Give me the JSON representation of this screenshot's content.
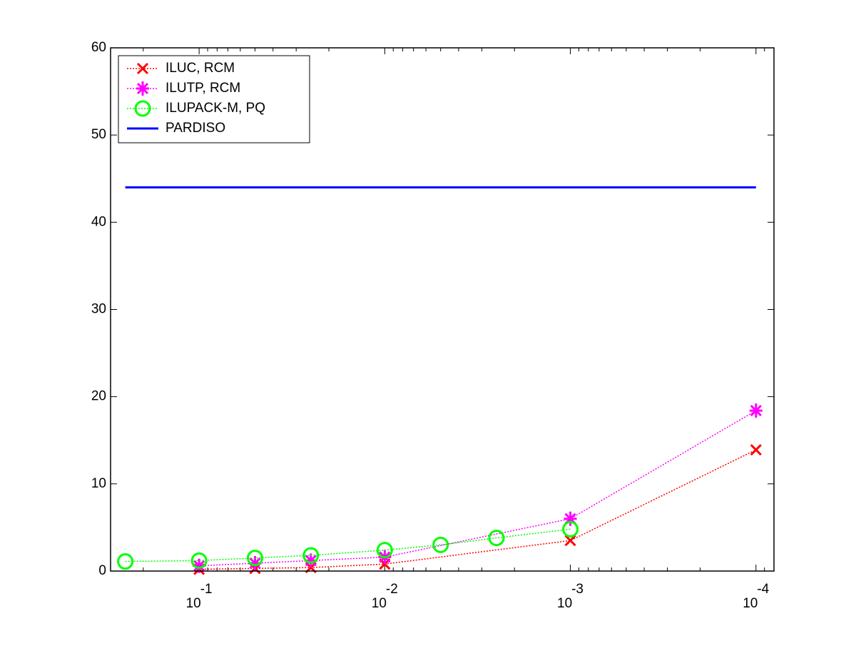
{
  "chart_data": {
    "type": "line",
    "xscale": "log",
    "xreversed": true,
    "xlim": [
      0.3,
      8e-05
    ],
    "ylim": [
      0,
      60
    ],
    "xticks": [
      {
        "value": 0.1,
        "label": "10",
        "exponent": "-1"
      },
      {
        "value": 0.01,
        "label": "10",
        "exponent": "-2"
      },
      {
        "value": 0.001,
        "label": "10",
        "exponent": "-3"
      },
      {
        "value": 0.0001,
        "label": "10",
        "exponent": "-4"
      }
    ],
    "xminorticks": [
      0.3,
      0.2,
      0.09,
      0.08,
      0.07,
      0.06,
      0.05,
      0.04,
      0.03,
      0.02,
      0.009,
      0.008,
      0.007,
      0.006,
      0.005,
      0.004,
      0.003,
      0.002,
      0.0009,
      0.0008,
      0.0007,
      0.0006,
      0.0005,
      0.0004,
      0.0003,
      0.0002,
      9e-05
    ],
    "yticks": [
      0,
      10,
      20,
      30,
      40,
      50,
      60
    ],
    "legend": "upper left",
    "series": [
      {
        "name": "ILUC, RCM",
        "color": "#ff0000",
        "marker": "x",
        "linestyle": "dotted",
        "x": [
          0.1,
          0.05,
          0.025,
          0.01,
          0.001,
          0.0001
        ],
        "values": [
          0.2,
          0.3,
          0.4,
          0.8,
          3.5,
          13.9
        ]
      },
      {
        "name": "ILUTP, RCM",
        "color": "#ff00ff",
        "marker": "star",
        "linestyle": "dotted",
        "x": [
          0.1,
          0.05,
          0.025,
          0.01,
          0.001,
          0.0001
        ],
        "values": [
          0.6,
          0.9,
          1.2,
          1.6,
          6.0,
          18.4
        ]
      },
      {
        "name": "ILUPACK-M, PQ",
        "color": "#00ff00",
        "marker": "circle",
        "linestyle": "dotted",
        "x": [
          0.25,
          0.1,
          0.05,
          0.025,
          0.01,
          0.005,
          0.0025,
          0.001
        ],
        "values": [
          1.1,
          1.2,
          1.5,
          1.8,
          2.4,
          3.0,
          3.8,
          4.8
        ]
      },
      {
        "name": "PARDISO",
        "color": "#0000ff",
        "marker": "none",
        "linestyle": "solid",
        "x": [
          0.25,
          0.0001
        ],
        "values": [
          44.0,
          44.0
        ]
      }
    ]
  }
}
